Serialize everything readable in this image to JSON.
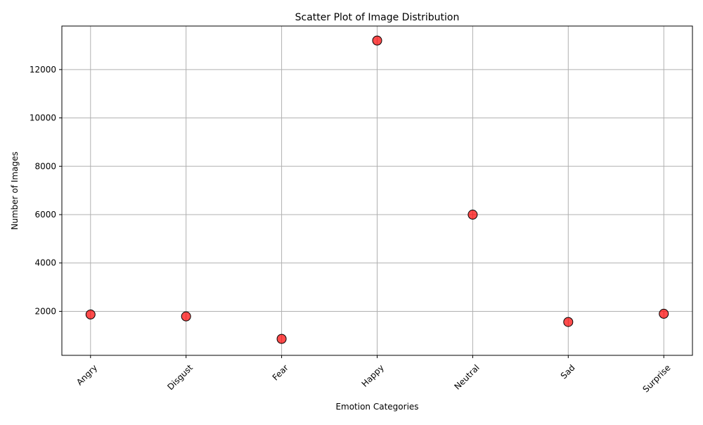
{
  "chart_data": {
    "type": "scatter",
    "title": "Scatter Plot of Image Distribution",
    "xlabel": "Emotion Categories",
    "ylabel": "Number of Images",
    "categories": [
      "Angry",
      "Disgust",
      "Fear",
      "Happy",
      "Neutral",
      "Sad",
      "Surprise"
    ],
    "values": [
      1870,
      1790,
      860,
      13200,
      6000,
      1560,
      1900
    ],
    "ylim": [
      180,
      13800
    ],
    "yticks": [
      2000,
      4000,
      6000,
      8000,
      10000,
      12000
    ],
    "ytick_labels": [
      "2000",
      "4000",
      "6000",
      "8000",
      "10000",
      "12000"
    ],
    "grid": true,
    "marker_color": "#ff0000",
    "marker_edge_color": "#000000",
    "grid_color": "#b0b0b0"
  }
}
